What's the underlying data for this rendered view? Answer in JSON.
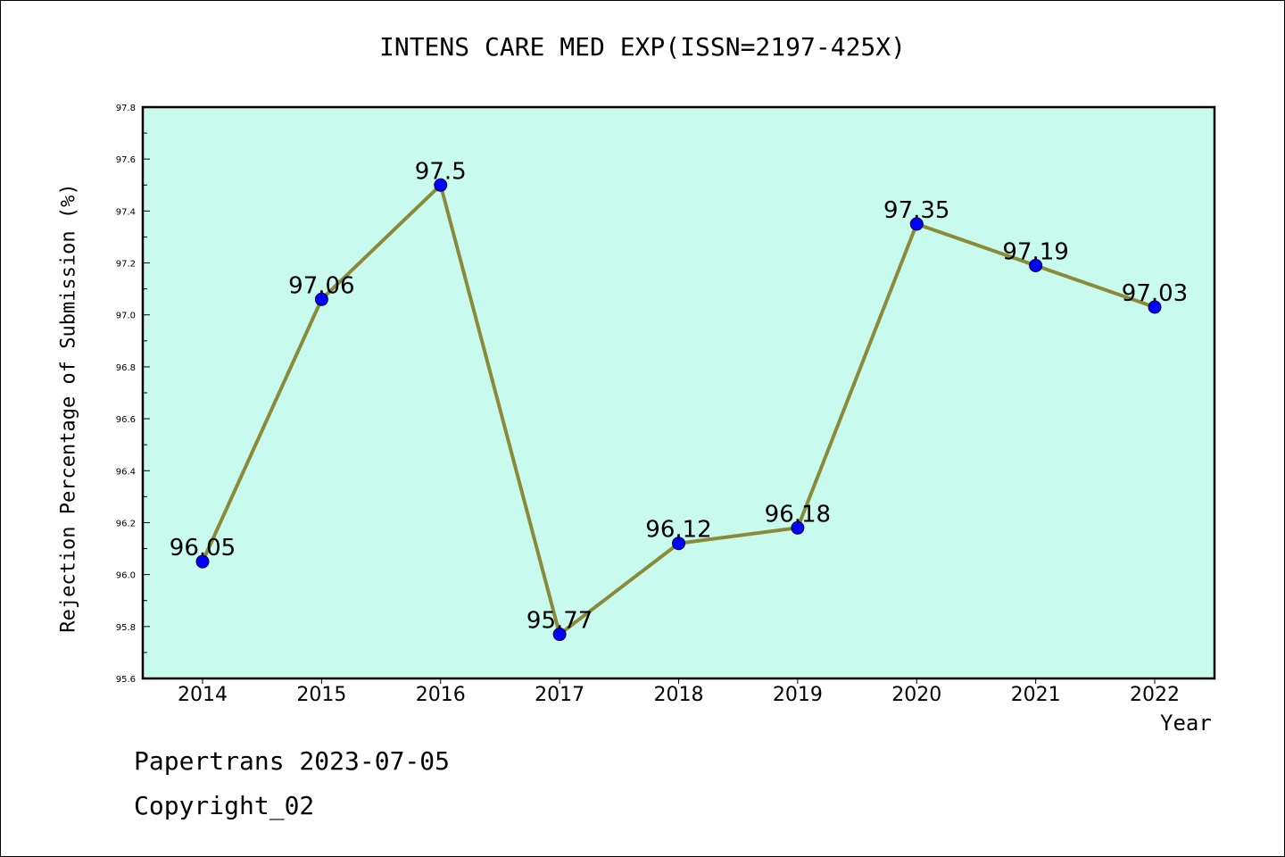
{
  "chart_data": {
    "type": "line",
    "title": "INTENS CARE MED EXP(ISSN=2197-425X)",
    "xlabel": "Year",
    "ylabel": "Rejection Percentage of Submission (%)",
    "categories": [
      "2014",
      "2015",
      "2016",
      "2017",
      "2018",
      "2019",
      "2020",
      "2021",
      "2022"
    ],
    "series": [
      {
        "values": [
          96.05,
          97.06,
          97.5,
          95.77,
          96.12,
          96.18,
          97.35,
          97.19,
          97.03
        ],
        "labels": [
          "96.05",
          "97.06",
          "97.5",
          "95.77",
          "96.12",
          "96.18",
          "97.35",
          "97.19",
          "97.03"
        ]
      }
    ],
    "ylim": [
      95.6,
      97.8
    ],
    "y_ticks": [
      "95.6",
      "95.8",
      "96.0",
      "96.2",
      "96.4",
      "96.6",
      "96.8",
      "97.0",
      "97.2",
      "97.4",
      "97.6",
      "97.8"
    ],
    "grid": false,
    "colors": {
      "plot_background": "#c8fbee",
      "line": "#8b8a3a",
      "marker": "#0000ff"
    }
  },
  "footer": {
    "line1": "Papertrans 2023-07-05",
    "line2": "Copyright_02"
  }
}
